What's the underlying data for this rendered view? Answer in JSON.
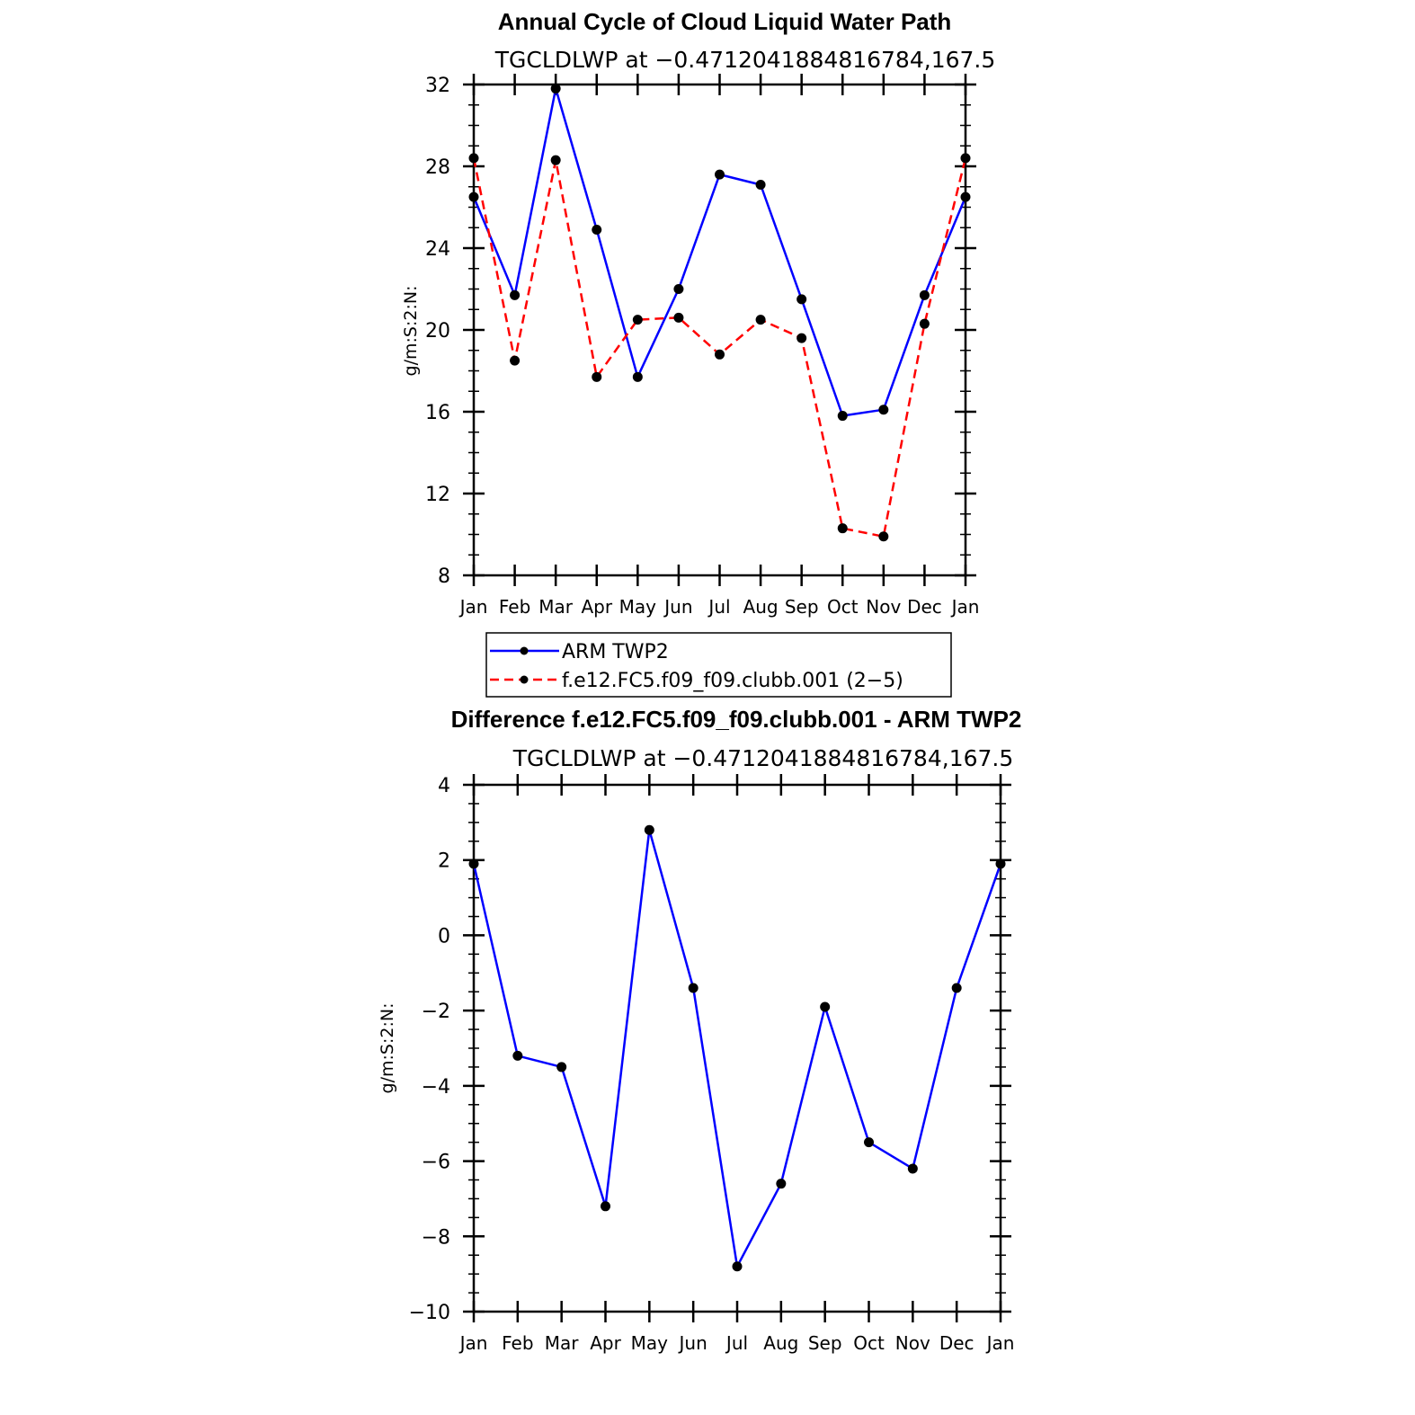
{
  "chart_data": [
    {
      "type": "line",
      "title": "Annual Cycle of Cloud Liquid Water Path",
      "subtitle": "TGCLDLWP at −0.4712041884816784,167.5",
      "ylabel": "g/m:S:2:N:",
      "xlabel": "",
      "categories": [
        "Jan",
        "Feb",
        "Mar",
        "Apr",
        "May",
        "Jun",
        "Jul",
        "Aug",
        "Sep",
        "Oct",
        "Nov",
        "Dec",
        "Jan"
      ],
      "ylim": [
        8,
        32
      ],
      "yticks": [
        "8",
        "12",
        "16",
        "20",
        "24",
        "28",
        "32"
      ],
      "series": [
        {
          "name": "ARM TWP2",
          "color": "#0000ff",
          "dash": "solid",
          "values": [
            26.5,
            21.7,
            31.8,
            24.9,
            17.7,
            22.0,
            27.6,
            27.1,
            21.5,
            15.8,
            16.1,
            21.7,
            26.5
          ]
        },
        {
          "name": "f.e12.FC5.f09_f09.clubb.001 (2−5)",
          "color": "#ff0000",
          "dash": "dashed",
          "values": [
            28.4,
            18.5,
            28.3,
            17.7,
            20.5,
            20.6,
            18.8,
            20.5,
            19.6,
            10.3,
            9.9,
            20.3,
            28.4
          ]
        }
      ],
      "legend": "below"
    },
    {
      "type": "line",
      "title": "Difference f.e12.FC5.f09_f09.clubb.001 - ARM TWP2",
      "subtitle": "TGCLDLWP at −0.4712041884816784,167.5",
      "ylabel": "g/m:S:2:N:",
      "xlabel": "",
      "categories": [
        "Jan",
        "Feb",
        "Mar",
        "Apr",
        "May",
        "Jun",
        "Jul",
        "Aug",
        "Sep",
        "Oct",
        "Nov",
        "Dec",
        "Jan"
      ],
      "ylim": [
        -10,
        4
      ],
      "yticks": [
        "−10",
        "−8",
        "−6",
        "−4",
        "−2",
        "0",
        "2",
        "4"
      ],
      "series": [
        {
          "color": "#0000ff",
          "dash": "solid",
          "values": [
            1.9,
            -3.2,
            -3.5,
            -7.2,
            2.8,
            -1.4,
            -8.8,
            -6.6,
            -1.9,
            -5.5,
            -6.2,
            -1.4,
            1.9
          ]
        }
      ]
    }
  ]
}
